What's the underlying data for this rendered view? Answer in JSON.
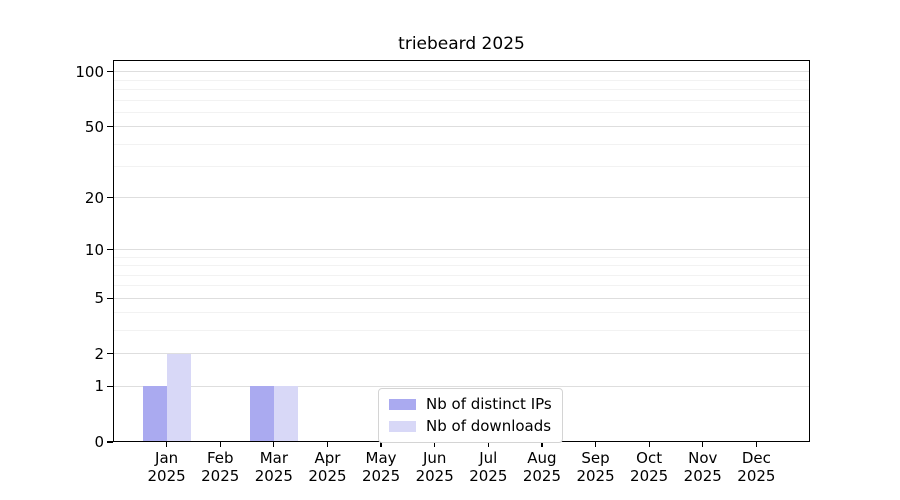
{
  "chart_data": {
    "type": "bar",
    "title": "triebeard 2025",
    "year": "2025",
    "categories": [
      "Jan",
      "Feb",
      "Mar",
      "Apr",
      "May",
      "Jun",
      "Jul",
      "Aug",
      "Sep",
      "Oct",
      "Nov",
      "Dec"
    ],
    "series": [
      {
        "name": "Nb of distinct IPs",
        "color": "#aaaaf0",
        "values": [
          1,
          0,
          1,
          0,
          0,
          0,
          0,
          0,
          0,
          0,
          0,
          0
        ]
      },
      {
        "name": "Nb of downloads",
        "color": "#d8d8f7",
        "values": [
          2,
          0,
          1,
          0,
          0,
          0,
          0,
          0,
          0,
          0,
          0,
          0
        ]
      }
    ],
    "yscale": "log1p",
    "ylim": [
      0,
      116
    ],
    "yticks": [
      0,
      1,
      2,
      5,
      10,
      20,
      50,
      100
    ],
    "minor_yticks": [
      3,
      4,
      6,
      7,
      8,
      9,
      30,
      40,
      60,
      70,
      80,
      90
    ],
    "grid": "horizontal",
    "legend_position": "bottom-center"
  },
  "colors": {
    "major_grid": "#dedede",
    "minor_grid": "#f2f2f2",
    "spine": "#000000",
    "legend_border": "#d4d4d4",
    "background": "#ffffff"
  }
}
